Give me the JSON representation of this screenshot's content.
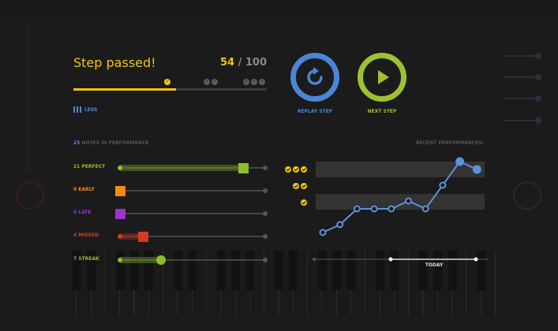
{
  "background": {
    "top_text_1": "· · · · · · · · ·   ·  · · · · · ·",
    "right_label": "· · ·"
  },
  "header": {
    "title": "Step passed!",
    "score_current": "54",
    "score_separator": " / ",
    "score_total": "100",
    "progress_fraction": 0.54,
    "checks": [
      true,
      false,
      false,
      false,
      false,
      false
    ]
  },
  "less_button": {
    "label": "LESS"
  },
  "actions": {
    "replay_label": "REPLAY STEP",
    "next_label": "NEXT STEP"
  },
  "stats": {
    "notes_count": "25",
    "notes_label": " NOTES IN PERFORMANCE",
    "recent_label": "RECENT PERFORMANCES:",
    "rows": [
      {
        "label": "21 PERFECT",
        "color": "#8fbf28",
        "kind": "slider-square",
        "level": 0.85
      },
      {
        "label": "0 EARLY",
        "color": "#f08a10",
        "kind": "square",
        "level": 0.0
      },
      {
        "label": "0 LATE",
        "color": "#9a35c8",
        "kind": "square",
        "level": 0.0
      },
      {
        "label": "4 MISSED",
        "color": "#d43a26",
        "kind": "slider-square",
        "level": 0.16
      },
      {
        "label": "7 STREAK",
        "color": "#8fbf28",
        "kind": "slider-circle",
        "level": 0.28
      }
    ]
  },
  "chart_data": {
    "type": "line",
    "values": [
      1,
      2,
      4,
      4,
      4,
      5,
      4,
      7,
      10,
      9
    ],
    "ylim": [
      0,
      10
    ],
    "star_rows": [
      3,
      2,
      1
    ],
    "colors": {
      "line": "#5b92d8",
      "band": "#333333",
      "star": "#f2c40f"
    },
    "today_label": "TODAY"
  }
}
